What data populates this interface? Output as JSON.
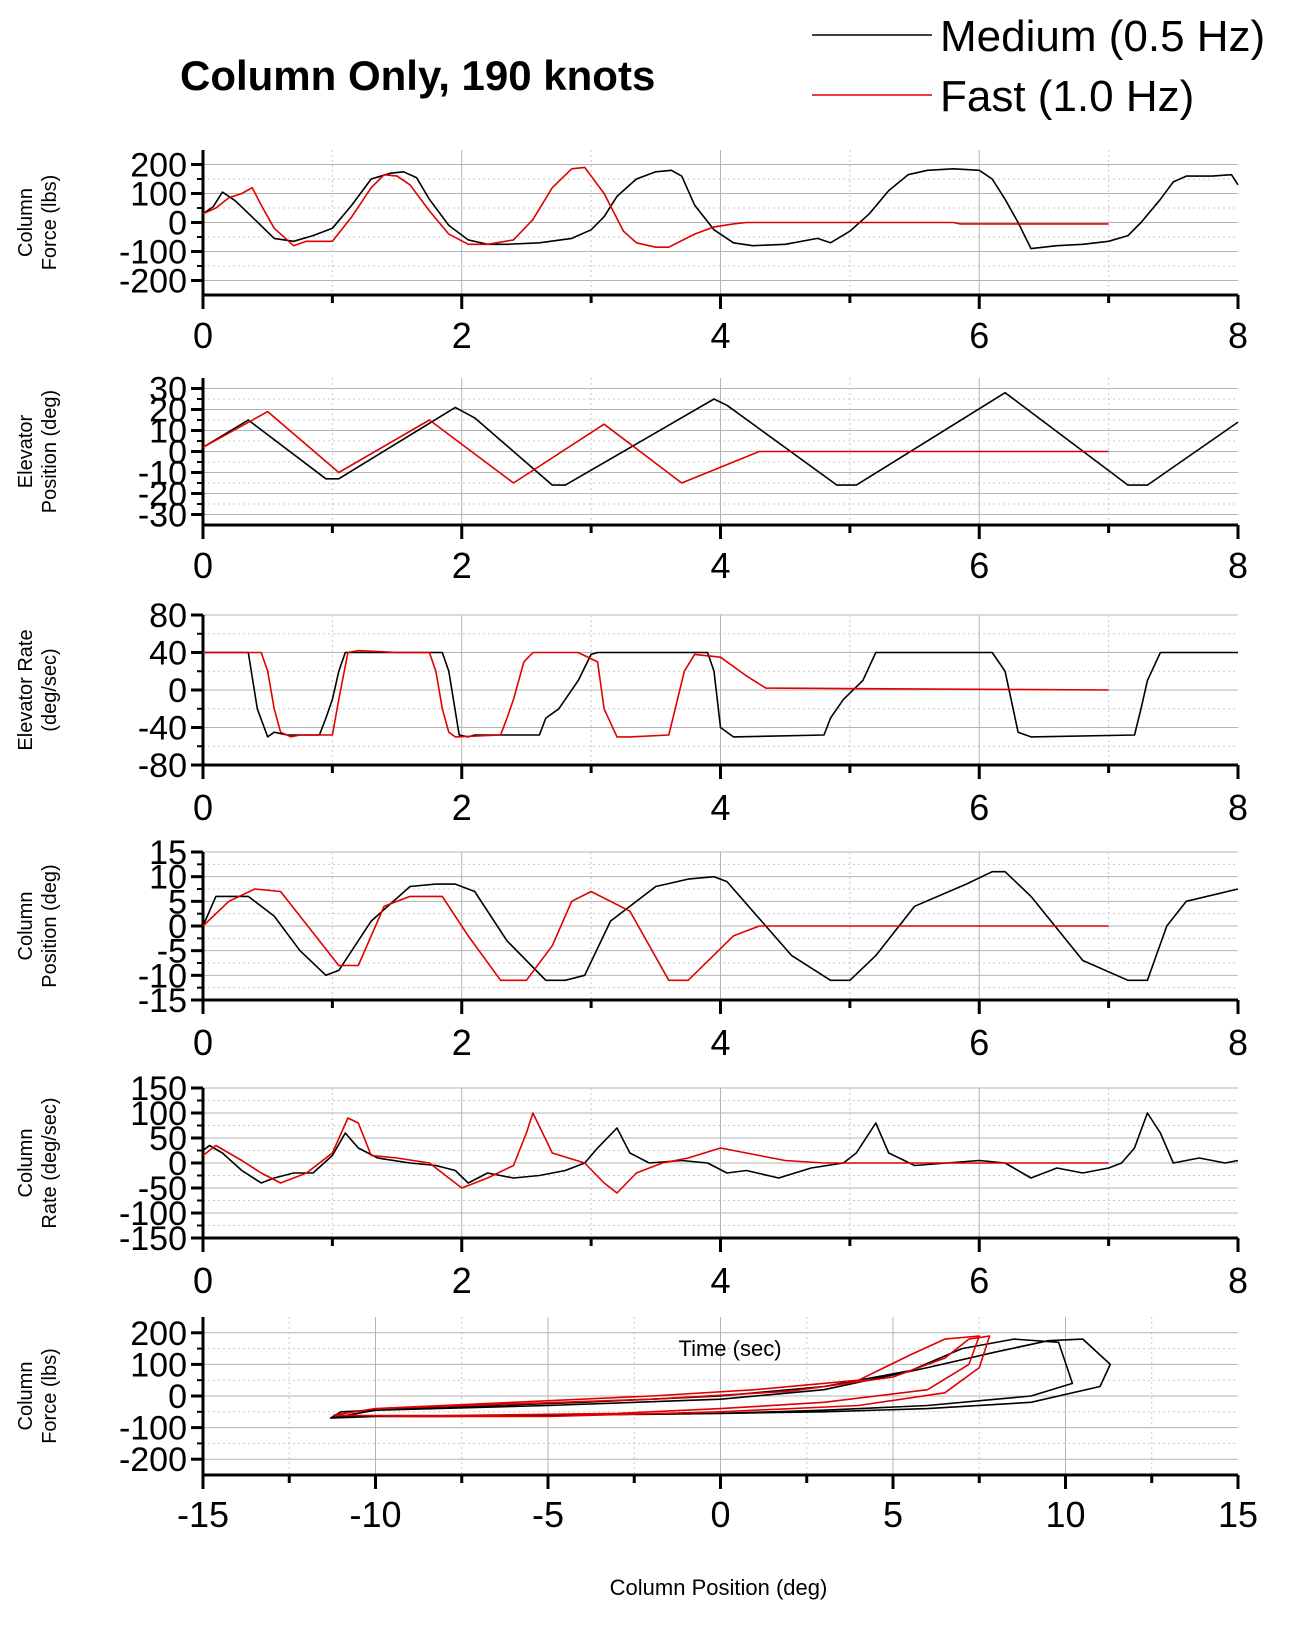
{
  "title": "Column Only, 190 knots",
  "legend": {
    "placement": "top-right",
    "entries": [
      {
        "name": "Medium (0.5 Hz)",
        "color": "#000000"
      },
      {
        "name": "Fast (1.0 Hz)",
        "color": "#e00000"
      }
    ]
  },
  "colors": {
    "medium": "#000000",
    "fast": "#e00000",
    "grid_major": "#b4b4b4",
    "grid_minor": "#c8c8c8"
  },
  "chart_data": [
    {
      "type": "line",
      "ylabel": [
        "Column",
        "Force (lbs)"
      ],
      "xlabel": "",
      "xlim": [
        0,
        8
      ],
      "ylim": [
        -250,
        250
      ],
      "xticks": [
        0,
        2,
        4,
        6,
        8
      ],
      "yticks": [
        200,
        100,
        0,
        -100,
        -200
      ],
      "grid": true,
      "series": [
        {
          "name": "Medium (0.5 Hz)",
          "x": [
            0,
            0.08,
            0.15,
            0.25,
            0.4,
            0.55,
            0.7,
            0.85,
            1,
            1.15,
            1.3,
            1.45,
            1.55,
            1.65,
            1.75,
            1.9,
            2.05,
            2.2,
            2.35,
            2.6,
            2.85,
            3,
            3.1,
            3.2,
            3.35,
            3.5,
            3.62,
            3.7,
            3.8,
            3.95,
            4.1,
            4.25,
            4.5,
            4.75,
            4.85,
            5,
            5.15,
            5.3,
            5.45,
            5.6,
            5.8,
            6,
            6.1,
            6.2,
            6.3,
            6.4,
            6.6,
            6.8,
            7,
            7.15,
            7.25,
            7.4,
            7.5,
            7.6,
            7.8,
            7.95,
            8
          ],
          "y": [
            30,
            55,
            105,
            75,
            10,
            -55,
            -65,
            -45,
            -20,
            60,
            150,
            170,
            175,
            155,
            80,
            -10,
            -60,
            -75,
            -75,
            -70,
            -55,
            -25,
            20,
            90,
            150,
            175,
            180,
            160,
            60,
            -25,
            -70,
            -80,
            -75,
            -55,
            -70,
            -30,
            30,
            110,
            165,
            180,
            185,
            180,
            150,
            80,
            0,
            -90,
            -80,
            -75,
            -65,
            -45,
            0,
            80,
            140,
            160,
            160,
            165,
            130
          ]
        },
        {
          "name": "Fast (1.0 Hz)",
          "x": [
            0,
            0.1,
            0.2,
            0.3,
            0.38,
            0.45,
            0.55,
            0.7,
            0.8,
            1,
            1.15,
            1.3,
            1.4,
            1.5,
            1.6,
            1.75,
            1.9,
            2.05,
            2.2,
            2.4,
            2.55,
            2.7,
            2.85,
            2.95,
            3.1,
            3.25,
            3.35,
            3.5,
            3.6,
            3.8,
            3.95,
            4.1,
            4.2,
            5.8,
            5.85,
            7.0
          ],
          "y": [
            30,
            50,
            85,
            100,
            120,
            60,
            -20,
            -80,
            -65,
            -65,
            20,
            120,
            165,
            160,
            130,
            40,
            -40,
            -75,
            -75,
            -60,
            10,
            120,
            185,
            190,
            100,
            -30,
            -70,
            -85,
            -85,
            -40,
            -15,
            -5,
            0,
            0,
            -5,
            -5
          ]
        }
      ]
    },
    {
      "type": "line",
      "ylabel": [
        "Elevator",
        "Position (deg)"
      ],
      "xlabel": "",
      "xlim": [
        0,
        8
      ],
      "ylim": [
        -35,
        35
      ],
      "xticks": [
        0,
        2,
        4,
        6,
        8
      ],
      "yticks": [
        30,
        20,
        10,
        0,
        -10,
        -20,
        -30
      ],
      "grid": true,
      "series": [
        {
          "name": "Medium (0.5 Hz)",
          "x": [
            0,
            0.35,
            0.95,
            1.05,
            1.95,
            2.1,
            2.7,
            2.8,
            3.95,
            4.05,
            4.9,
            5.05,
            6.2,
            7.15,
            7.3,
            8
          ],
          "y": [
            2,
            15,
            -13,
            -13,
            21,
            16,
            -16,
            -16,
            25,
            22,
            -16,
            -16,
            28,
            -16,
            -16,
            14
          ]
        },
        {
          "name": "Fast (1.0 Hz)",
          "x": [
            0,
            0.5,
            1.05,
            1.75,
            2.4,
            3.1,
            3.7,
            4.1,
            4.3,
            7.0
          ],
          "y": [
            2,
            19,
            -10,
            15,
            -15,
            13,
            -15,
            -5,
            0,
            0
          ]
        }
      ]
    },
    {
      "type": "line",
      "ylabel": [
        "Elevator Rate",
        "(deg/sec)"
      ],
      "xlabel": "",
      "xlim": [
        0,
        8
      ],
      "ylim": [
        -80,
        80
      ],
      "xticks": [
        0,
        2,
        4,
        6,
        8
      ],
      "yticks": [
        80,
        40,
        0,
        -40,
        -80
      ],
      "grid": true,
      "series": [
        {
          "name": "Medium (0.5 Hz)",
          "x": [
            0,
            0.3,
            0.35,
            0.42,
            0.5,
            0.55,
            0.65,
            0.9,
            0.95,
            1.0,
            1.05,
            1.1,
            1.5,
            1.85,
            1.9,
            1.98,
            2.05,
            2.1,
            2.6,
            2.65,
            2.75,
            2.9,
            3.0,
            3.05,
            3.1,
            3.9,
            3.95,
            4.0,
            4.1,
            4.8,
            4.85,
            4.95,
            5.1,
            5.2,
            5.3,
            6.1,
            6.2,
            6.3,
            6.4,
            7.2,
            7.25,
            7.3,
            7.4,
            8
          ],
          "y": [
            40,
            40,
            40,
            -20,
            -50,
            -45,
            -48,
            -48,
            -30,
            -10,
            20,
            40,
            40,
            40,
            20,
            -48,
            -50,
            -48,
            -48,
            -30,
            -20,
            10,
            38,
            40,
            40,
            40,
            20,
            -40,
            -50,
            -48,
            -30,
            -10,
            10,
            40,
            40,
            40,
            20,
            -45,
            -50,
            -48,
            -20,
            10,
            40,
            40
          ]
        },
        {
          "name": "Fast (1.0 Hz)",
          "x": [
            0,
            0.4,
            0.45,
            0.5,
            0.55,
            0.6,
            0.68,
            0.75,
            1.0,
            1.05,
            1.12,
            1.2,
            1.5,
            1.75,
            1.8,
            1.85,
            1.9,
            1.95,
            2.3,
            2.35,
            2.4,
            2.48,
            2.55,
            2.9,
            3.05,
            3.1,
            3.2,
            3.3,
            3.6,
            3.65,
            3.72,
            3.8,
            4.0,
            4.2,
            4.35,
            7.0
          ],
          "y": [
            40,
            40,
            40,
            20,
            -20,
            -45,
            -50,
            -48,
            -48,
            -10,
            40,
            42,
            40,
            40,
            20,
            -20,
            -45,
            -50,
            -48,
            -30,
            -10,
            30,
            40,
            40,
            30,
            -20,
            -50,
            -50,
            -48,
            -20,
            20,
            38,
            35,
            15,
            2,
            0
          ]
        }
      ]
    },
    {
      "type": "line",
      "ylabel": [
        "Column",
        "Position (deg)"
      ],
      "xlabel": "",
      "xlim": [
        0,
        8
      ],
      "ylim": [
        -15,
        15
      ],
      "xticks": [
        0,
        2,
        4,
        6,
        8
      ],
      "yticks": [
        15,
        10,
        5,
        0,
        -5,
        -10,
        -15
      ],
      "grid": true,
      "series": [
        {
          "name": "Medium (0.5 Hz)",
          "x": [
            0,
            0.1,
            0.35,
            0.55,
            0.75,
            0.95,
            1.05,
            1.3,
            1.6,
            1.8,
            1.95,
            2.1,
            2.35,
            2.65,
            2.8,
            2.95,
            3.15,
            3.5,
            3.75,
            3.95,
            4.05,
            4.25,
            4.55,
            4.85,
            5.0,
            5.2,
            5.5,
            5.9,
            6.1,
            6.2,
            6.4,
            6.8,
            7.15,
            7.3,
            7.45,
            7.6,
            8
          ],
          "y": [
            0,
            6,
            6,
            2,
            -5,
            -10,
            -9,
            1,
            8,
            8.5,
            8.5,
            7,
            -3,
            -11,
            -11,
            -10,
            1,
            8,
            9.5,
            10,
            9,
            3,
            -6,
            -11,
            -11,
            -6,
            4,
            8.5,
            11,
            11,
            6,
            -7,
            -11,
            -11,
            0,
            5,
            7.5
          ]
        },
        {
          "name": "Fast (1.0 Hz)",
          "x": [
            0,
            0.2,
            0.4,
            0.6,
            1.05,
            1.2,
            1.4,
            1.6,
            1.85,
            2.05,
            2.3,
            2.5,
            2.7,
            2.85,
            3.0,
            3.3,
            3.6,
            3.75,
            4.1,
            4.3,
            7.0
          ],
          "y": [
            0,
            5,
            7.5,
            7,
            -8,
            -8,
            4,
            6,
            6,
            -2,
            -11,
            -11,
            -4,
            5,
            7,
            3,
            -11,
            -11,
            -2,
            0,
            0
          ]
        }
      ]
    },
    {
      "type": "line",
      "ylabel": [
        "Column",
        "Rate (deg/sec)"
      ],
      "xlabel": "",
      "xlim": [
        0,
        8
      ],
      "ylim": [
        -150,
        150
      ],
      "xticks": [
        0,
        2,
        4,
        6,
        8
      ],
      "yticks": [
        150,
        100,
        50,
        0,
        -50,
        -100,
        -150
      ],
      "grid": true,
      "series": [
        {
          "name": "Medium (0.5 Hz)",
          "x": [
            0,
            0.05,
            0.15,
            0.3,
            0.45,
            0.55,
            0.7,
            0.85,
            1.0,
            1.1,
            1.2,
            1.35,
            1.6,
            1.8,
            1.95,
            2.05,
            2.2,
            2.4,
            2.6,
            2.8,
            2.95,
            3.05,
            3.2,
            3.3,
            3.45,
            3.7,
            3.9,
            4.05,
            4.2,
            4.45,
            4.7,
            4.95,
            5.05,
            5.15,
            5.2,
            5.3,
            5.5,
            5.75,
            6.0,
            6.2,
            6.4,
            6.6,
            6.8,
            7.0,
            7.1,
            7.2,
            7.3,
            7.4,
            7.5,
            7.7,
            7.9,
            8
          ],
          "y": [
            25,
            35,
            20,
            -15,
            -40,
            -30,
            -20,
            -20,
            15,
            60,
            30,
            10,
            0,
            -5,
            -15,
            -40,
            -20,
            -30,
            -25,
            -15,
            0,
            30,
            70,
            20,
            0,
            5,
            0,
            -20,
            -15,
            -30,
            -10,
            0,
            20,
            60,
            80,
            20,
            -5,
            0,
            5,
            0,
            -30,
            -10,
            -20,
            -10,
            0,
            30,
            100,
            60,
            0,
            10,
            0,
            5
          ]
        },
        {
          "name": "Fast (1.0 Hz)",
          "x": [
            0,
            0.1,
            0.3,
            0.45,
            0.6,
            0.8,
            1.0,
            1.12,
            1.2,
            1.3,
            1.5,
            1.75,
            1.9,
            2.0,
            2.2,
            2.4,
            2.5,
            2.55,
            2.7,
            2.95,
            3.1,
            3.2,
            3.35,
            3.55,
            3.75,
            4.0,
            4.2,
            4.5,
            4.8,
            7.0
          ],
          "y": [
            15,
            35,
            5,
            -20,
            -40,
            -20,
            20,
            90,
            80,
            15,
            10,
            0,
            -30,
            -50,
            -30,
            -5,
            60,
            100,
            20,
            0,
            -40,
            -60,
            -20,
            0,
            10,
            30,
            20,
            5,
            0,
            0
          ]
        }
      ]
    },
    {
      "type": "line",
      "ylabel": [
        "Column",
        "Force (lbs)"
      ],
      "xlabel": "Column Position (deg)",
      "annotation": "Time (sec)",
      "xlim": [
        -15,
        15
      ],
      "ylim": [
        -250,
        250
      ],
      "xticks": [
        -15,
        -10,
        -5,
        0,
        5,
        10,
        15
      ],
      "yticks": [
        200,
        100,
        0,
        -100,
        -200
      ],
      "grid": true,
      "series": [
        {
          "name": "Medium (0.5 Hz)",
          "x": [
            -11.3,
            -10,
            -5,
            0,
            3,
            6,
            8,
            9.5,
            10.5,
            11.3,
            11,
            9,
            6,
            3,
            0,
            -5,
            -10,
            -11.3,
            -11,
            -8,
            -4,
            0,
            3,
            5.5,
            7,
            8.5,
            9.8,
            10.2,
            9,
            6,
            3,
            0,
            -4,
            -8,
            -11,
            -11.3
          ],
          "y": [
            -70,
            -45,
            -30,
            -10,
            20,
            90,
            140,
            175,
            180,
            100,
            30,
            -20,
            -40,
            -50,
            -55,
            -60,
            -65,
            -70,
            -50,
            -35,
            -20,
            0,
            30,
            80,
            150,
            180,
            170,
            40,
            0,
            -30,
            -45,
            -55,
            -60,
            -65,
            -65,
            -70
          ]
        },
        {
          "name": "Fast (1.0 Hz)",
          "x": [
            -11.2,
            -10,
            -6,
            -2,
            2,
            5,
            6.5,
            7.2,
            7.8,
            7.5,
            6.5,
            4,
            0,
            -5,
            -9,
            -11.2,
            -10,
            -6,
            -2,
            1,
            4,
            5.5,
            6.5,
            7.5,
            7.2,
            6,
            3,
            0,
            -3,
            -8,
            -11,
            -11.2
          ],
          "y": [
            -60,
            -40,
            -25,
            -10,
            15,
            60,
            120,
            180,
            190,
            90,
            10,
            -30,
            -50,
            -65,
            -65,
            -60,
            -40,
            -20,
            0,
            20,
            50,
            130,
            180,
            190,
            100,
            20,
            -20,
            -40,
            -55,
            -62,
            -62,
            -60
          ]
        }
      ]
    }
  ]
}
